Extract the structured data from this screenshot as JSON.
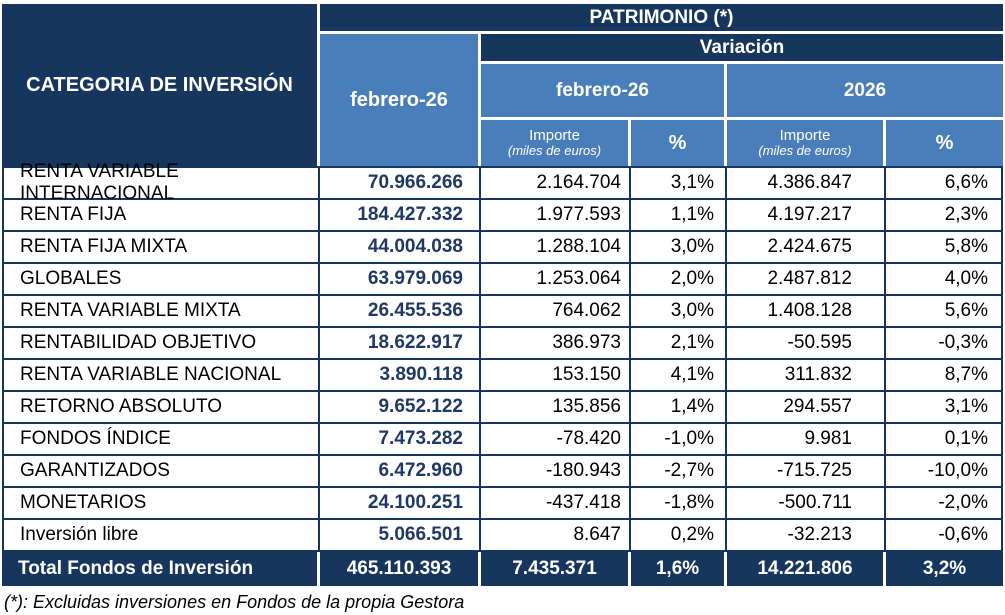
{
  "header": {
    "category": "CATEGORIA DE INVERSIÓN",
    "patrimonio": "PATRIMONIO (*)",
    "patrimonio_period": "febrero-26",
    "variacion": "Variación",
    "variacion_month_period": "febrero-26",
    "variacion_year_period": "2026",
    "importe": "Importe",
    "importe_unit": "(miles de euros)",
    "percent": "%"
  },
  "rows": [
    {
      "category": "RENTA VARIABLE INTERNACIONAL",
      "patrimonio": "70.966.266",
      "var_month_importe": "2.164.704",
      "var_month_pct": "3,1%",
      "var_year_importe": "4.386.847",
      "var_year_pct": "6,6%"
    },
    {
      "category": "RENTA FIJA",
      "patrimonio": "184.427.332",
      "var_month_importe": "1.977.593",
      "var_month_pct": "1,1%",
      "var_year_importe": "4.197.217",
      "var_year_pct": "2,3%"
    },
    {
      "category": "RENTA FIJA MIXTA",
      "patrimonio": "44.004.038",
      "var_month_importe": "1.288.104",
      "var_month_pct": "3,0%",
      "var_year_importe": "2.424.675",
      "var_year_pct": "5,8%"
    },
    {
      "category": "GLOBALES",
      "patrimonio": "63.979.069",
      "var_month_importe": "1.253.064",
      "var_month_pct": "2,0%",
      "var_year_importe": "2.487.812",
      "var_year_pct": "4,0%"
    },
    {
      "category": "RENTA VARIABLE MIXTA",
      "patrimonio": "26.455.536",
      "var_month_importe": "764.062",
      "var_month_pct": "3,0%",
      "var_year_importe": "1.408.128",
      "var_year_pct": "5,6%"
    },
    {
      "category": "RENTABILIDAD OBJETIVO",
      "patrimonio": "18.622.917",
      "var_month_importe": "386.973",
      "var_month_pct": "2,1%",
      "var_year_importe": "-50.595",
      "var_year_pct": "-0,3%"
    },
    {
      "category": "RENTA VARIABLE NACIONAL",
      "patrimonio": "3.890.118",
      "var_month_importe": "153.150",
      "var_month_pct": "4,1%",
      "var_year_importe": "311.832",
      "var_year_pct": "8,7%"
    },
    {
      "category": "RETORNO ABSOLUTO",
      "patrimonio": "9.652.122",
      "var_month_importe": "135.856",
      "var_month_pct": "1,4%",
      "var_year_importe": "294.557",
      "var_year_pct": "3,1%"
    },
    {
      "category": "FONDOS ÍNDICE",
      "patrimonio": "7.473.282",
      "var_month_importe": "-78.420",
      "var_month_pct": "-1,0%",
      "var_year_importe": "9.981",
      "var_year_pct": "0,1%"
    },
    {
      "category": "GARANTIZADOS",
      "patrimonio": "6.472.960",
      "var_month_importe": "-180.943",
      "var_month_pct": "-2,7%",
      "var_year_importe": "-715.725",
      "var_year_pct": "-10,0%"
    },
    {
      "category": "MONETARIOS",
      "patrimonio": "24.100.251",
      "var_month_importe": "-437.418",
      "var_month_pct": "-1,8%",
      "var_year_importe": "-500.711",
      "var_year_pct": "-2,0%"
    },
    {
      "category": "Inversión libre",
      "patrimonio": "5.066.501",
      "var_month_importe": "8.647",
      "var_month_pct": "0,2%",
      "var_year_importe": "-32.213",
      "var_year_pct": "-0,6%"
    }
  ],
  "total": {
    "label": "Total Fondos de Inversión",
    "patrimonio": "465.110.393",
    "var_month_importe": "7.435.371",
    "var_month_pct": "1,6%",
    "var_year_importe": "14.221.806",
    "var_year_pct": "3,2%"
  },
  "footnote": "(*): Excluidas inversiones en Fondos de la propia Gestora",
  "colors": {
    "navy": "#17365D",
    "medium_blue": "#4A7EBB",
    "value_text": "#1F3864"
  }
}
